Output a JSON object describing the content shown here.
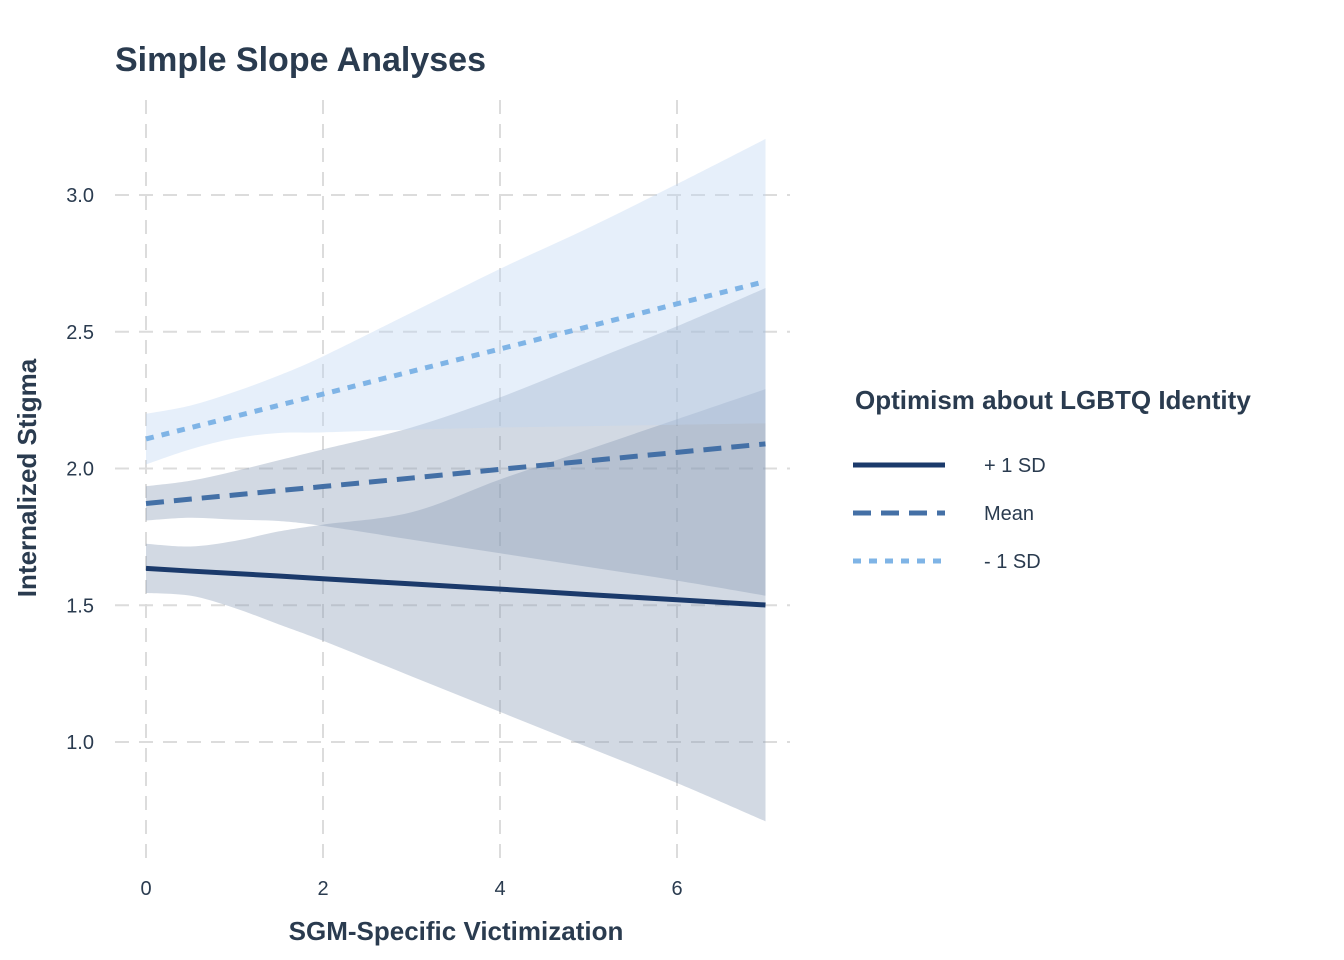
{
  "chart_data": {
    "type": "line",
    "title": "Simple Slope Analyses",
    "xlabel": "SGM-Specific Victimization",
    "ylabel": "Internalized Stigma",
    "xlim": [
      0,
      7
    ],
    "ylim": [
      0.6,
      3.3
    ],
    "x_ticks": [
      0,
      2,
      4,
      6
    ],
    "x_tick_labels": [
      "0",
      "2",
      "4",
      "6"
    ],
    "y_ticks": [
      1.0,
      1.5,
      2.0,
      2.5,
      3.0
    ],
    "y_tick_labels": [
      "1.0",
      "1.5",
      "2.0",
      "2.5",
      "3.0"
    ],
    "grid": true,
    "legend": {
      "title": "Optimism about LGBTQ Identity",
      "position": "right"
    },
    "series": [
      {
        "name": "+ 1 SD",
        "color": "#1b3a6b",
        "line_style": "solid",
        "band_color": "#8a9bb6",
        "x": [
          0,
          0.5,
          1,
          1.5,
          2,
          3,
          4,
          5,
          6,
          7
        ],
        "y": [
          1.635,
          1.625,
          1.616,
          1.607,
          1.597,
          1.578,
          1.559,
          1.539,
          1.52,
          1.501
        ],
        "lower": [
          1.545,
          1.535,
          1.49,
          1.43,
          1.37,
          1.24,
          1.11,
          0.98,
          0.85,
          0.71
        ],
        "upper": [
          1.725,
          1.715,
          1.735,
          1.77,
          1.795,
          1.84,
          1.96,
          2.07,
          2.18,
          2.29
        ]
      },
      {
        "name": "Mean",
        "color": "#4470a6",
        "line_style": "dashed",
        "band_color": "#8a9bb6",
        "x": [
          0,
          0.5,
          1,
          1.5,
          2,
          3,
          4,
          5,
          6,
          7
        ],
        "y": [
          1.872,
          1.888,
          1.903,
          1.919,
          1.934,
          1.965,
          1.997,
          2.028,
          2.059,
          2.09
        ],
        "lower": [
          1.81,
          1.82,
          1.813,
          1.808,
          1.79,
          1.74,
          1.69,
          1.64,
          1.59,
          1.535
        ],
        "upper": [
          1.935,
          1.955,
          1.99,
          2.03,
          2.07,
          2.15,
          2.26,
          2.39,
          2.52,
          2.66
        ]
      },
      {
        "name": "- 1 SD",
        "color": "#7fb4e6",
        "line_style": "dotted",
        "band_color": "#bcd6f3",
        "x": [
          0,
          0.5,
          1,
          1.5,
          2,
          3,
          4,
          5,
          6,
          7
        ],
        "y": [
          2.108,
          2.149,
          2.19,
          2.231,
          2.272,
          2.355,
          2.437,
          2.519,
          2.602,
          2.684
        ],
        "lower": [
          2.015,
          2.07,
          2.11,
          2.13,
          2.132,
          2.142,
          2.15,
          2.155,
          2.16,
          2.165
        ],
        "upper": [
          2.2,
          2.23,
          2.28,
          2.34,
          2.41,
          2.57,
          2.73,
          2.88,
          3.04,
          3.205
        ]
      }
    ]
  }
}
